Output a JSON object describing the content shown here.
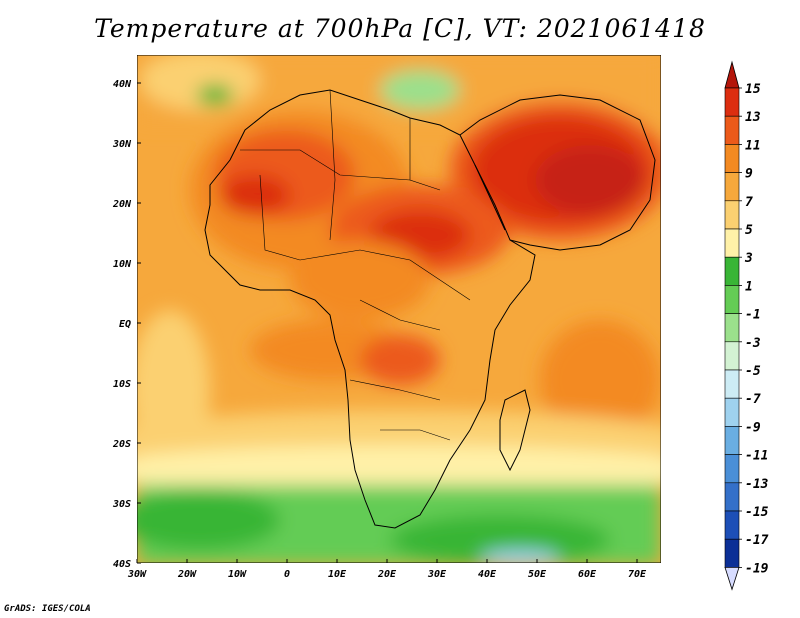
{
  "title": "Temperature at 700hPa [C], VT: 2021061418",
  "credit": "GrADS: IGES/COLA",
  "map": {
    "region": "Africa",
    "lat_labels": [
      "40N",
      "30N",
      "20N",
      "10N",
      "EQ",
      "10S",
      "20S",
      "30S",
      "40S"
    ],
    "lon_labels": [
      "30W",
      "20W",
      "10W",
      "0",
      "10E",
      "20E",
      "30E",
      "40E",
      "50E",
      "60E",
      "70E"
    ]
  },
  "colorbar": {
    "labels": [
      "15",
      "13",
      "11",
      "9",
      "7",
      "5",
      "3",
      "1",
      "-1",
      "-3",
      "-5",
      "-7",
      "-9",
      "-11",
      "-13",
      "-15",
      "-17",
      "-19"
    ],
    "colors": [
      "#b4160b",
      "#dc2e10",
      "#ec5a1a",
      "#f38a22",
      "#f6a83c",
      "#fbd071",
      "#fff1a8",
      "#39b536",
      "#64cc55",
      "#9be08c",
      "#d3f2d3",
      "#cdecf5",
      "#9fd2ef",
      "#6aaee2",
      "#4a8fd7",
      "#3470c9",
      "#1d4fb7",
      "#0b2f96",
      "#081a62"
    ],
    "arrow_top_color": "#b4160b",
    "arrow_bottom_color": "#d7dcff"
  }
}
